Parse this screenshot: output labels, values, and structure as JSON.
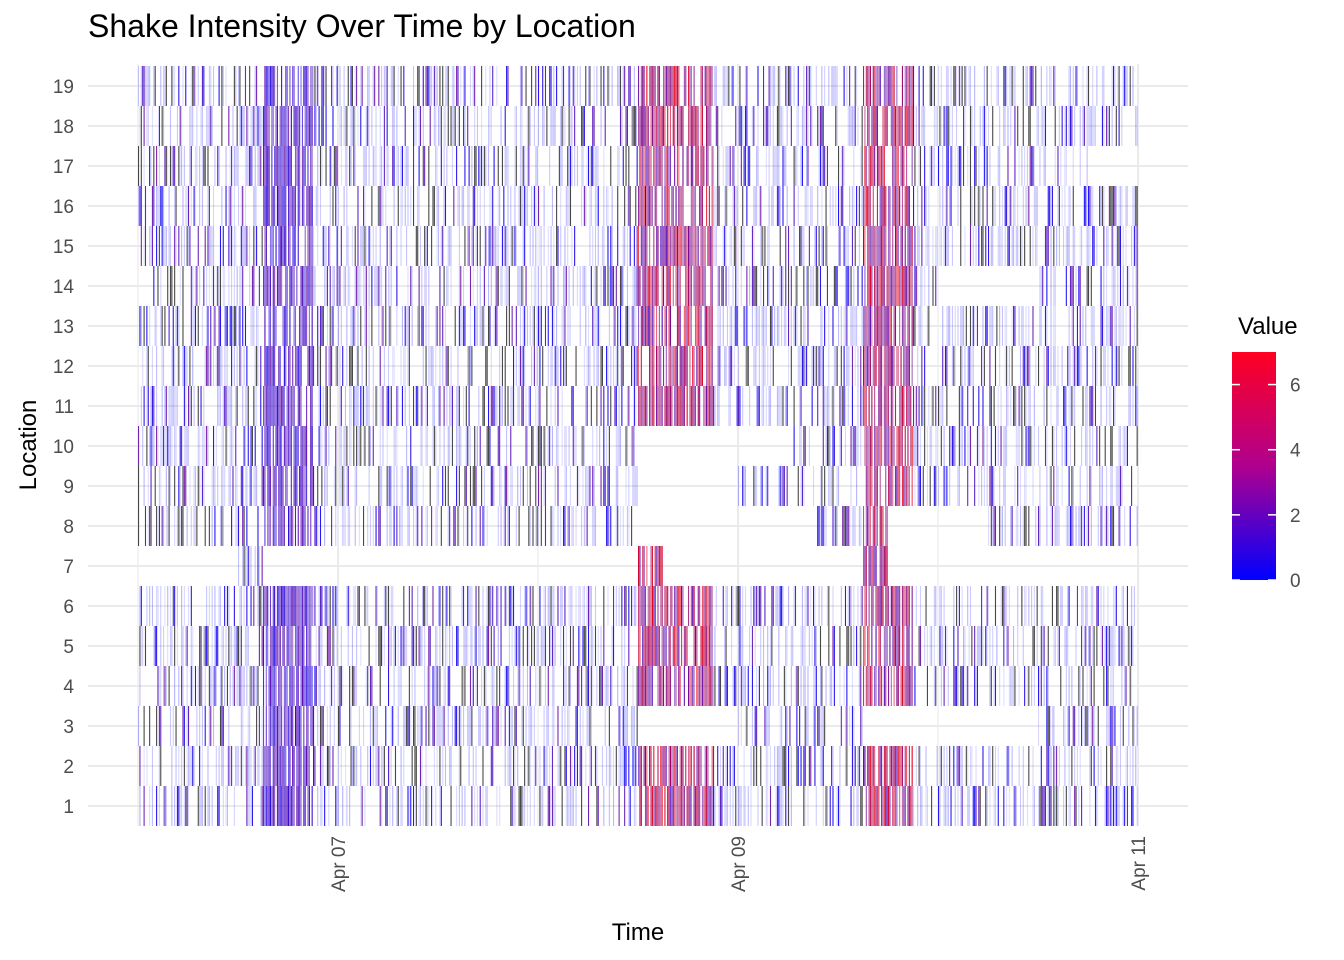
{
  "chart_data": {
    "type": "heatmap",
    "title": "Shake Intensity Over Time by Location",
    "xlabel": "Time",
    "ylabel": "Location",
    "locations": [
      1,
      2,
      3,
      4,
      5,
      6,
      7,
      8,
      9,
      10,
      11,
      12,
      13,
      14,
      15,
      16,
      17,
      18,
      19
    ],
    "x_ticks": [
      "Apr 07",
      "Apr 09",
      "Apr 11"
    ],
    "x_tick_dates": [
      "2020-04-07",
      "2020-04-09",
      "2020-04-11"
    ],
    "x_range": [
      "2020-04-06 00:00",
      "2020-04-11 00:00"
    ],
    "legend": {
      "title": "Value",
      "min": 0,
      "max": 7,
      "ticks": [
        0,
        2,
        4,
        6
      ],
      "placement": "right",
      "colors": {
        "low": "#0000ff",
        "high": "#ff0000"
      }
    },
    "grid": true,
    "missing_data": [
      {
        "location": 3,
        "from": "2020-04-08 12:00",
        "to": "2020-04-09 00:00"
      },
      {
        "location": 3,
        "from": "2020-04-09 15:00",
        "to": "2020-04-10 12:00"
      },
      {
        "location": 7,
        "from": "2020-04-06 00:00",
        "to": "2020-04-06 12:00"
      },
      {
        "location": 7,
        "from": "2020-04-06 15:00",
        "to": "2020-04-08 12:00"
      },
      {
        "location": 7,
        "from": "2020-04-08 15:00",
        "to": "2020-04-09 15:00"
      },
      {
        "location": 7,
        "from": "2020-04-09 18:00",
        "to": "2020-04-11 00:00"
      },
      {
        "location": 8,
        "from": "2020-04-08 12:00",
        "to": "2020-04-09 09:00"
      },
      {
        "location": 8,
        "from": "2020-04-09 18:00",
        "to": "2020-04-10 06:00"
      },
      {
        "location": 9,
        "from": "2020-04-08 12:00",
        "to": "2020-04-09 00:00"
      },
      {
        "location": 10,
        "from": "2020-04-08 12:00",
        "to": "2020-04-09 06:00"
      },
      {
        "location": 14,
        "from": "2020-04-10 00:00",
        "to": "2020-04-10 12:00"
      },
      {
        "location": 17,
        "from": "2020-04-10 18:00",
        "to": "2020-04-11 00:00"
      }
    ],
    "high_intensity_periods": [
      {
        "from": "2020-04-06 15:00",
        "to": "2020-04-06 21:00",
        "peak_value": 2.5
      },
      {
        "from": "2020-04-08 12:00",
        "to": "2020-04-08 21:00",
        "peak_value": 6.5
      },
      {
        "from": "2020-04-09 15:00",
        "to": "2020-04-09 21:00",
        "peak_value": 6.5
      }
    ]
  }
}
